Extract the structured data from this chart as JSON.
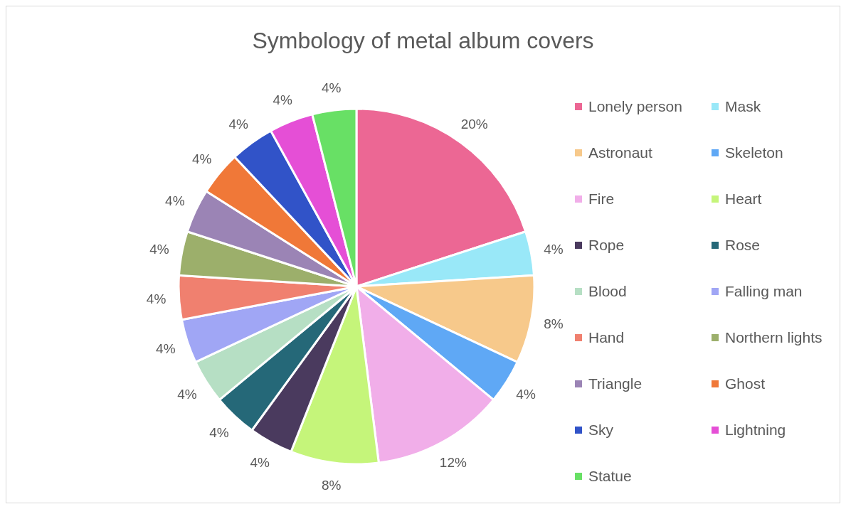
{
  "chart_data": {
    "type": "pie",
    "title": "Symbology of metal album covers",
    "categories": [
      "Lonely person",
      "Mask",
      "Astronaut",
      "Skeleton",
      "Fire",
      "Heart",
      "Rope",
      "Rose",
      "Blood",
      "Falling man",
      "Hand",
      "Northern lights",
      "Triangle",
      "Ghost",
      "Sky",
      "Lightning",
      "Statue"
    ],
    "values": [
      20,
      4,
      8,
      4,
      12,
      8,
      4,
      4,
      4,
      4,
      4,
      4,
      4,
      4,
      4,
      4,
      4
    ],
    "colors": [
      "#ec6794",
      "#99e8f8",
      "#f7c98b",
      "#5fa8f5",
      "#f1aee9",
      "#c5f57a",
      "#4a3a5e",
      "#256878",
      "#b6dfc4",
      "#a0a6f5",
      "#f0806f",
      "#9caf6b",
      "#9b84b5",
      "#f07838",
      "#3153c8",
      "#e54fd6",
      "#68e065"
    ],
    "value_labels": [
      "20%",
      "4%",
      "8%",
      "4%",
      "12%",
      "8%",
      "4%",
      "4%",
      "4%",
      "4%",
      "4%",
      "4%",
      "4%",
      "4%",
      "4%",
      "4%",
      "4%"
    ],
    "legend": "right"
  }
}
